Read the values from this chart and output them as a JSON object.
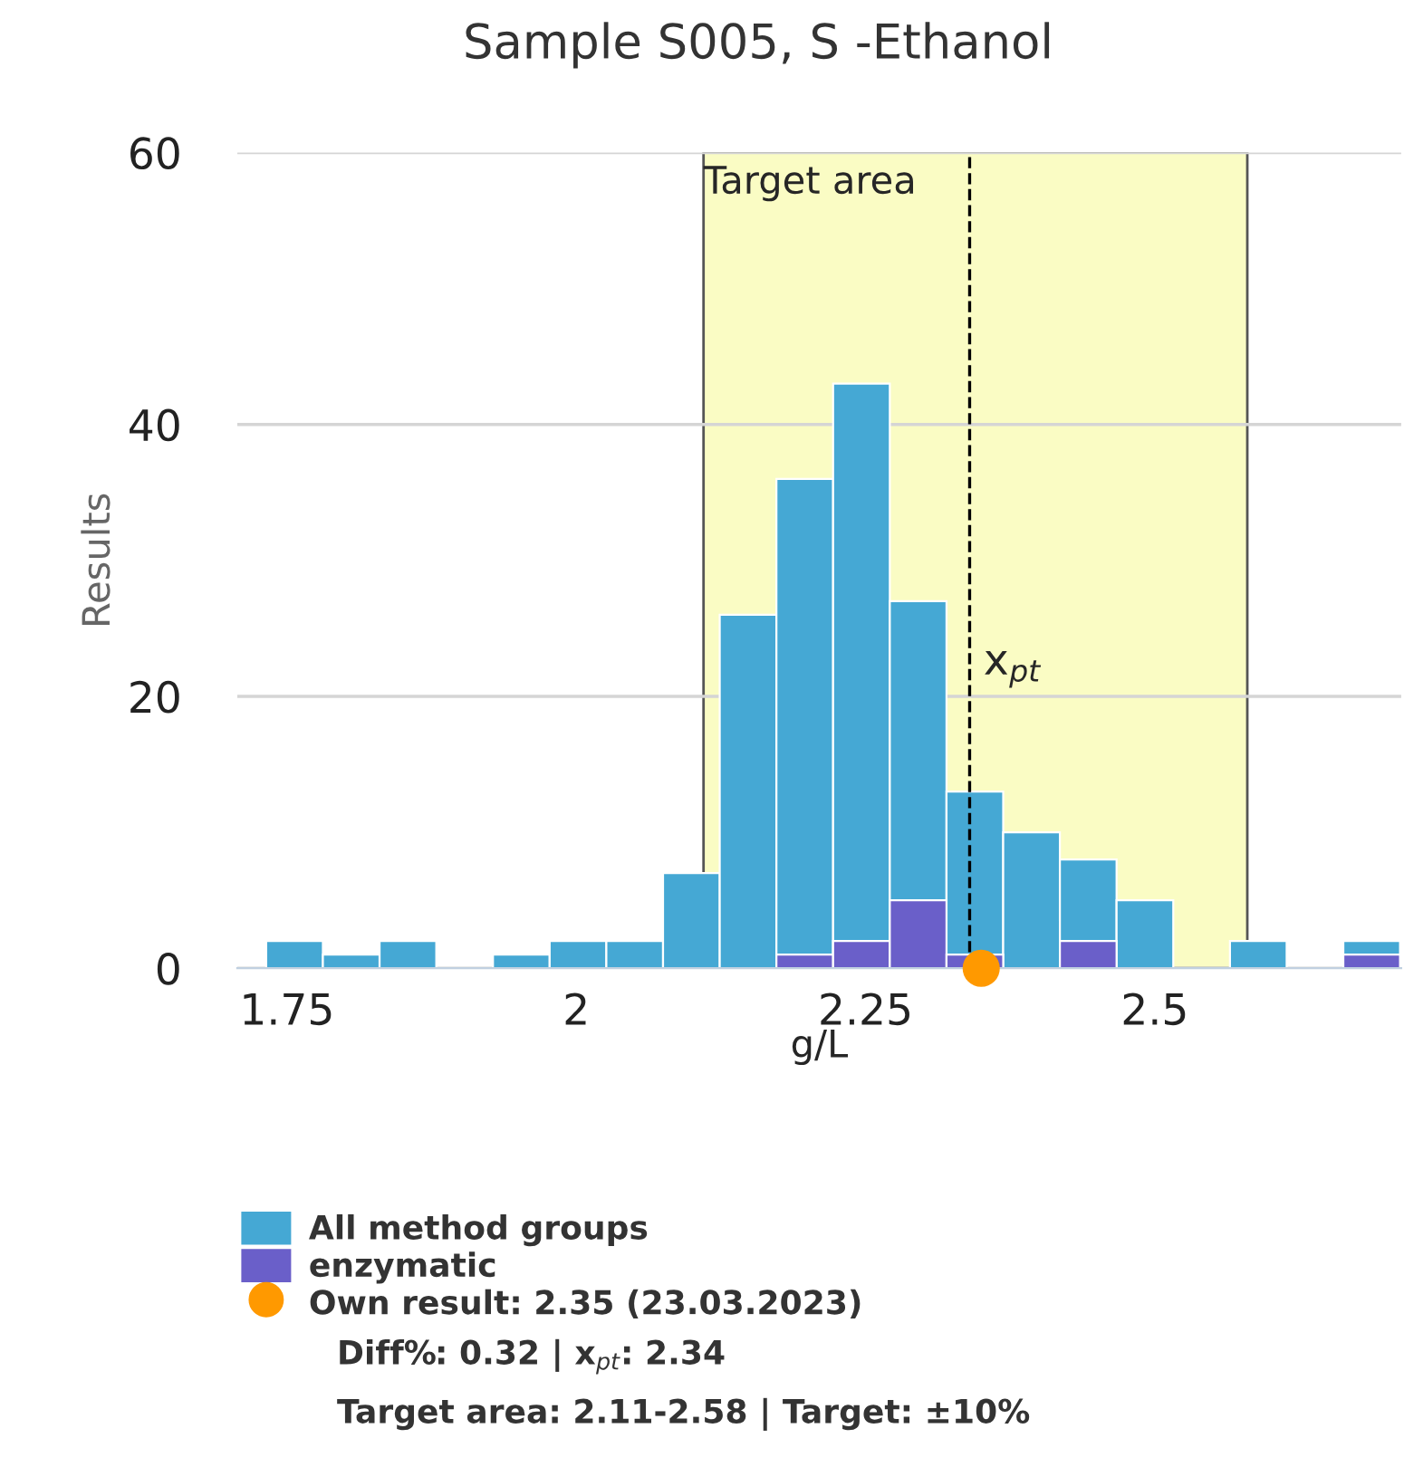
{
  "chart_data": {
    "type": "histogram",
    "title": "Sample S005, S -Ethanol",
    "xlabel": "g/L",
    "ylabel": "Results",
    "bins": [
      1.732,
      1.781,
      1.83,
      1.879,
      1.928,
      1.977,
      2.026,
      2.075,
      2.124,
      2.173,
      2.222,
      2.271,
      2.32,
      2.369,
      2.418,
      2.467,
      2.516,
      2.565,
      2.614,
      2.663,
      2.712
    ],
    "series": [
      {
        "name": "All method groups",
        "color": "#45a8d4",
        "values": [
          2,
          1,
          2,
          0,
          1,
          2,
          2,
          7,
          26,
          36,
          43,
          27,
          13,
          10,
          8,
          5,
          0,
          2,
          0,
          2
        ]
      },
      {
        "name": "enzymatic",
        "color": "#6a5fc9",
        "values": [
          0,
          0,
          0,
          0,
          0,
          0,
          0,
          0,
          0,
          1,
          2,
          5,
          1,
          0,
          2,
          0,
          0,
          0,
          0,
          1
        ]
      },
      {
        "name": "Own result: 2.35 (23.03.2023)",
        "type": "scatter",
        "color": "#ff9900",
        "x": [
          2.35
        ],
        "values": [
          0
        ]
      }
    ],
    "xlim": [
      1.707,
      2.713
    ],
    "ylim": [
      0,
      60
    ],
    "xticks": [
      1.75,
      2,
      2.25,
      2.5
    ],
    "yticks": [
      0,
      20,
      40,
      60
    ],
    "grid": "y",
    "legend": "bottom",
    "marker": "circle",
    "bands": [
      {
        "axis": "x",
        "from": 2.11,
        "to": 2.58,
        "label": "Target area",
        "color": "#fafcc4"
      }
    ],
    "ref_lines": [
      {
        "axis": "x",
        "value": 2.34,
        "label": "x$_{pt}$",
        "line_style": "dashed",
        "color": "#000000"
      }
    ],
    "annotations": [
      "Diff%: 0.32 | x$_{pt}$: 2.34",
      "Target area: 2.11-2.58 | Target: ±10%"
    ]
  }
}
